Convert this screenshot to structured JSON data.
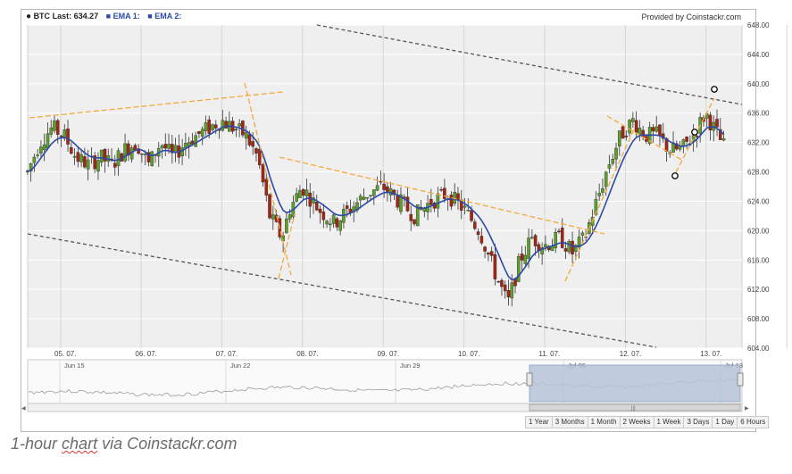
{
  "header": {
    "symbol": "BTC",
    "last_label": "Last:",
    "last_value": "634.27",
    "ema1_label": "EMA 1:",
    "ema2_label": "EMA 2:",
    "provider": "Provided by Coinstackr.com"
  },
  "range_buttons": [
    "1 Year",
    "3 Months",
    "1 Month",
    "2 Weeks",
    "1 Week",
    "3 Days",
    "1 Day",
    "6 Hours"
  ],
  "caption": {
    "pre": "1-hour ",
    "underlined": "chart",
    "post": " via Coinstackr.com"
  },
  "colors": {
    "up": "#5e9e2b",
    "down": "#a32513",
    "ema": "#2b4aa8",
    "trend_dashed": "#555555",
    "trend_orange": "#f4a93c",
    "plot_bg": "#efefef",
    "navigator_fill": "#b7c4da"
  },
  "chart_data": {
    "type": "candlestick",
    "interval": "1 hour",
    "x_ticks": [
      "05. 07.",
      "06. 07.",
      "07. 07.",
      "08. 07.",
      "09. 07.",
      "10. 07.",
      "11. 07.",
      "12. 07.",
      "13. 07."
    ],
    "y_ticks": [
      604.0,
      608.0,
      612.0,
      616.0,
      620.0,
      624.0,
      628.0,
      632.0,
      636.0,
      640.0,
      644.0,
      648.0
    ],
    "ylim": [
      604,
      648
    ],
    "last": 634.27,
    "close_path": [
      {
        "x": 4.6,
        "close": 628.0
      },
      {
        "x": 4.75,
        "close": 632.0
      },
      {
        "x": 4.9,
        "close": 634.0
      },
      {
        "x": 5.05,
        "close": 633.0
      },
      {
        "x": 5.2,
        "close": 630.0
      },
      {
        "x": 5.35,
        "close": 629.0
      },
      {
        "x": 5.5,
        "close": 630.0
      },
      {
        "x": 5.65,
        "close": 629.0
      },
      {
        "x": 5.8,
        "close": 631.0
      },
      {
        "x": 5.95,
        "close": 632.0
      },
      {
        "x": 6.1,
        "close": 629.0
      },
      {
        "x": 6.25,
        "close": 632.0
      },
      {
        "x": 6.4,
        "close": 630.0
      },
      {
        "x": 6.55,
        "close": 632.0
      },
      {
        "x": 6.7,
        "close": 633.0
      },
      {
        "x": 6.85,
        "close": 634.0
      },
      {
        "x": 7.0,
        "close": 635.0
      },
      {
        "x": 7.15,
        "close": 634.0
      },
      {
        "x": 7.3,
        "close": 633.0
      },
      {
        "x": 7.45,
        "close": 630.0
      },
      {
        "x": 7.6,
        "close": 622.0
      },
      {
        "x": 7.75,
        "close": 619.0
      },
      {
        "x": 7.85,
        "close": 623.0
      },
      {
        "x": 8.0,
        "close": 626.0
      },
      {
        "x": 8.2,
        "close": 623.0
      },
      {
        "x": 8.4,
        "close": 621.0
      },
      {
        "x": 8.6,
        "close": 623.0
      },
      {
        "x": 8.8,
        "close": 625.0
      },
      {
        "x": 9.0,
        "close": 626.0
      },
      {
        "x": 9.2,
        "close": 624.0
      },
      {
        "x": 9.4,
        "close": 622.0
      },
      {
        "x": 9.6,
        "close": 624.0
      },
      {
        "x": 9.8,
        "close": 625.0
      },
      {
        "x": 10.0,
        "close": 623.0
      },
      {
        "x": 10.2,
        "close": 620.0
      },
      {
        "x": 10.4,
        "close": 614.0
      },
      {
        "x": 10.55,
        "close": 610.0
      },
      {
        "x": 10.7,
        "close": 616.0
      },
      {
        "x": 10.85,
        "close": 619.0
      },
      {
        "x": 11.0,
        "close": 618.0
      },
      {
        "x": 11.2,
        "close": 619.0
      },
      {
        "x": 11.35,
        "close": 617.0
      },
      {
        "x": 11.5,
        "close": 619.0
      },
      {
        "x": 11.65,
        "close": 624.0
      },
      {
        "x": 11.8,
        "close": 629.0
      },
      {
        "x": 11.95,
        "close": 633.0
      },
      {
        "x": 12.1,
        "close": 635.0
      },
      {
        "x": 12.25,
        "close": 633.0
      },
      {
        "x": 12.4,
        "close": 633.0
      },
      {
        "x": 12.55,
        "close": 631.0
      },
      {
        "x": 12.7,
        "close": 631.0
      },
      {
        "x": 12.85,
        "close": 633.0
      },
      {
        "x": 13.0,
        "close": 636.0
      },
      {
        "x": 13.1,
        "close": 634.0
      },
      {
        "x": 13.2,
        "close": 632.0
      },
      {
        "x": 13.25,
        "close": 631.0
      }
    ],
    "navigator": {
      "labels": [
        "Jun 15",
        "Jun 22",
        "Jun 29",
        "Jul 06",
        "Jul 13"
      ]
    }
  }
}
